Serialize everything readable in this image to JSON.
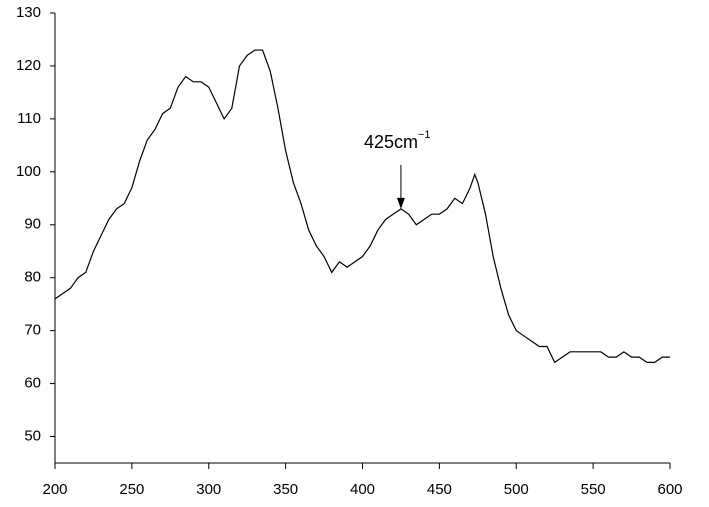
{
  "chart_data": {
    "type": "line",
    "x": [
      200,
      205,
      210,
      215,
      220,
      225,
      230,
      235,
      240,
      245,
      250,
      255,
      260,
      265,
      270,
      275,
      280,
      285,
      290,
      295,
      300,
      305,
      310,
      315,
      320,
      325,
      330,
      335,
      340,
      345,
      350,
      355,
      360,
      365,
      370,
      375,
      380,
      385,
      390,
      395,
      400,
      405,
      410,
      415,
      420,
      425,
      430,
      435,
      440,
      445,
      450,
      455,
      460,
      465,
      470,
      473,
      475,
      480,
      485,
      490,
      495,
      500,
      505,
      510,
      515,
      520,
      525,
      530,
      535,
      540,
      545,
      550,
      555,
      560,
      565,
      570,
      575,
      580,
      585,
      590,
      595,
      600
    ],
    "series": [
      {
        "color": "#000000",
        "values": [
          76,
          77,
          78,
          80,
          81,
          85,
          88,
          91,
          93,
          94,
          97,
          102,
          106,
          108,
          111,
          112,
          116,
          118,
          117,
          117,
          116,
          113,
          110,
          112,
          120,
          122,
          123,
          123,
          119,
          112,
          104,
          98,
          94,
          89,
          86,
          84,
          81,
          83,
          82,
          83,
          84,
          86,
          89,
          91,
          92,
          93,
          92,
          90,
          91,
          92,
          92,
          93,
          95,
          94,
          97,
          99.5,
          98,
          92,
          84,
          78,
          73,
          70,
          69,
          68,
          67,
          67,
          64,
          65,
          66,
          66,
          66,
          66,
          66,
          65,
          65,
          66,
          65,
          65,
          64,
          64,
          65,
          65
        ]
      }
    ],
    "xlim": [
      200,
      600
    ],
    "ylim": [
      45,
      130
    ],
    "xticks": [
      200,
      250,
      300,
      350,
      400,
      450,
      500,
      550,
      600
    ],
    "yticks": [
      50,
      60,
      70,
      80,
      90,
      100,
      110,
      120,
      130
    ],
    "annotations": [
      {
        "text": "425cm",
        "superscript": "−1",
        "x": 425,
        "y": 93
      }
    ],
    "grid": false
  }
}
